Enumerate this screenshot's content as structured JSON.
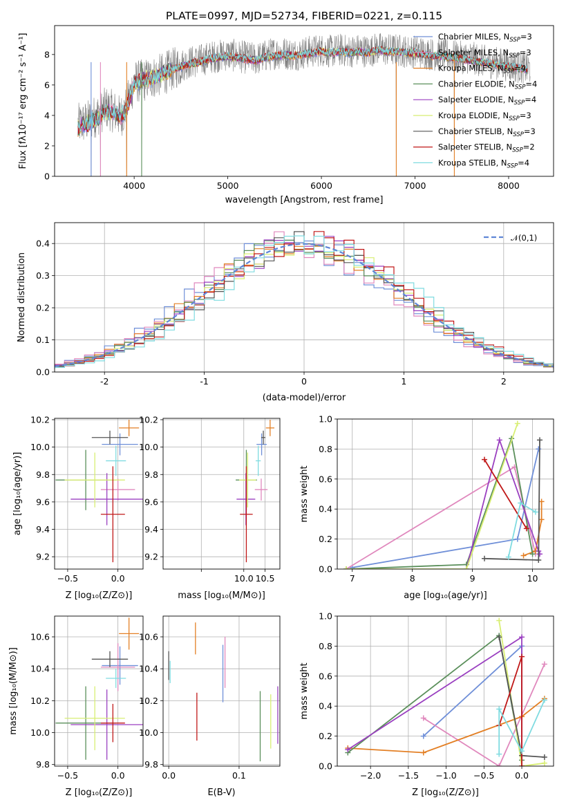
{
  "figure": {
    "title": "PLATE=0997, MJD=52734, FIBERID=0221, z=0.115",
    "colors": {
      "Chabrier MILES": "#6f8fd8",
      "Salpeter MILES": "#e088bd",
      "Kroupa MILES": "#e37f24",
      "Chabrier ELODIE": "#5a8f5a",
      "Salpeter ELODIE": "#9a3fc0",
      "Kroupa ELODIE": "#d8ee72",
      "Chabrier STELIB": "#555555",
      "Salpeter STELIB": "#c01818",
      "Kroupa STELIB": "#7fdbe0"
    }
  },
  "chart_data": [
    {
      "id": "spectrum",
      "type": "line",
      "xlabel": "wavelength [Angstrom, rest frame]",
      "ylabel": "Flux [f_λ 10^-17 erg cm^-2 s^-1 A^-1]",
      "xlim": [
        3150,
        8480
      ],
      "ylim": [
        0,
        9.9
      ],
      "xticks": [
        4000,
        5000,
        6000,
        7000,
        8000
      ],
      "yticks": [
        0,
        2,
        4,
        6,
        8
      ],
      "legend_position": "upper right",
      "legend": [
        {
          "text": "Chabrier MILES, N_SSP=3",
          "label": "Chabrier MILES, N",
          "sub": "SSP",
          "tail": "=3"
        },
        {
          "text": "Salpeter MILES, N_SSP=3",
          "label": "Salpeter MILES, N",
          "sub": "SSP",
          "tail": "=3"
        },
        {
          "text": "Kroupa MILES, N_SSP=4",
          "label": "Kroupa MILES, N",
          "sub": "SSP",
          "tail": "=4"
        },
        {
          "text": "Chabrier ELODIE, N_SSP=4",
          "label": "Chabrier ELODIE, N",
          "sub": "SSP",
          "tail": "=4"
        },
        {
          "text": "Salpeter ELODIE, N_SSP=4",
          "label": "Salpeter ELODIE, N",
          "sub": "SSP",
          "tail": "=4"
        },
        {
          "text": "Kroupa ELODIE, N_SSP=3",
          "label": "Kroupa ELODIE, N",
          "sub": "SSP",
          "tail": "=3"
        },
        {
          "text": "Chabrier STELIB, N_SSP=3",
          "label": "Chabrier STELIB, N",
          "sub": "SSP",
          "tail": "=3"
        },
        {
          "text": "Salpeter STELIB, N_SSP=2",
          "label": "Salpeter STELIB, N",
          "sub": "SSP",
          "tail": "=2"
        },
        {
          "text": "Kroupa STELIB, N_SSP=4",
          "label": "Kroupa STELIB, N",
          "sub": "SSP",
          "tail": "=4"
        }
      ],
      "data_series": {
        "name": "",
        "color": "#808080",
        "x": [
          3400,
          3500,
          3600,
          3700,
          3800,
          3850,
          3900,
          3950,
          4000,
          4100,
          4200,
          4300,
          4400,
          4500,
          4600,
          4700,
          4800,
          4900,
          5000,
          5100,
          5200,
          5300,
          5400,
          5500,
          5600,
          5700,
          5800,
          5900,
          6000,
          6100,
          6200,
          6300,
          6400,
          6500,
          6600,
          6700,
          6800,
          6900,
          7000,
          7100,
          7200,
          7300,
          7400,
          7500,
          7600,
          7700,
          7800,
          7900,
          8000,
          8100,
          8200
        ],
        "y": [
          3.4,
          3.6,
          4.0,
          4.5,
          4.2,
          3.9,
          4.3,
          5.2,
          6.2,
          6.3,
          6.5,
          6.7,
          7.0,
          7.3,
          7.5,
          7.6,
          7.8,
          7.9,
          8.0,
          7.9,
          7.8,
          7.7,
          7.9,
          8.1,
          8.1,
          8.0,
          8.1,
          8.2,
          8.3,
          8.2,
          8.3,
          8.2,
          8.3,
          8.2,
          8.4,
          8.3,
          8.3,
          8.2,
          8.2,
          8.1,
          8.0,
          8.0,
          7.9,
          7.8,
          7.8,
          7.6,
          7.5,
          7.4,
          7.3,
          7.2,
          7.1
        ],
        "noise": 1.1,
        "x_end": 8230
      },
      "model_x": [
        3400,
        3500,
        3600,
        3700,
        3800,
        3850,
        3900,
        3950,
        4000,
        4100,
        4200,
        4300,
        4400,
        4500,
        4600,
        4700,
        4800,
        4900,
        5000,
        5100,
        5200,
        5300,
        5400,
        5500,
        5600,
        5700,
        5800,
        5900,
        6000,
        6100,
        6200,
        6300,
        6400,
        6500,
        6600,
        6700,
        6800,
        6900,
        7000,
        7100,
        7200,
        7300,
        7400,
        7500,
        7600,
        7700,
        7800,
        7900,
        8000,
        8100,
        8200
      ],
      "model_y": [
        3.2,
        3.4,
        3.8,
        4.3,
        4.1,
        3.9,
        4.2,
        5.0,
        6.1,
        6.3,
        6.5,
        6.7,
        7.0,
        7.2,
        7.4,
        7.5,
        7.7,
        7.8,
        7.9,
        7.8,
        7.7,
        7.6,
        7.8,
        7.9,
        8.0,
        7.9,
        8.0,
        8.1,
        8.2,
        8.1,
        8.2,
        8.1,
        8.2,
        8.1,
        8.3,
        8.2,
        8.2,
        8.1,
        8.1,
        8.0,
        7.9,
        7.9,
        7.8,
        7.7,
        7.6,
        7.5,
        7.4,
        7.3,
        7.2,
        7.1,
        7.0
      ],
      "dips": [
        {
          "x": 3540,
          "y": 0
        },
        {
          "x": 3640,
          "y": 0
        },
        {
          "x": 3920,
          "y": 0
        },
        {
          "x": 4080,
          "y": 0
        },
        {
          "x": 6800,
          "y": 0
        },
        {
          "x": 7420,
          "y": 0
        }
      ]
    },
    {
      "id": "residuals",
      "type": "histogram",
      "xlabel": "(data-model)/error",
      "ylabel": "Normed distribution",
      "xlim": [
        -2.5,
        2.5
      ],
      "ylim": [
        0,
        0.465
      ],
      "xticks": [
        -2,
        -1,
        0,
        1,
        2
      ],
      "yticks": [
        0.0,
        0.1,
        0.2,
        0.3,
        0.4
      ],
      "ytick_labels": [
        "0.0",
        "0.1",
        "0.2",
        "0.3",
        "0.4"
      ],
      "grid": true,
      "bin_width": 0.1,
      "legend_position": "upper right",
      "legend": {
        "label": "𝒩(0,1)"
      },
      "reference_curve": {
        "name": "𝒩(0,1)",
        "mean": 0,
        "sigma": 1,
        "color": "#5f86d6",
        "style": "dashed"
      },
      "series_note": "nine step histograms, one per model, approximately Gaussian around 0"
    },
    {
      "id": "age_vs_Z",
      "type": "errorbar",
      "xlabel": "Z [log10(Z/Z⊙)]",
      "ylabel": "age [log10(age/yr)]",
      "xlim": [
        -0.63,
        0.25
      ],
      "ylim": [
        9.11,
        10.21
      ],
      "xticks": [
        -0.5,
        0.0
      ],
      "xtick_labels": [
        "−0.5",
        "0.0"
      ],
      "yticks": [
        9.2,
        9.4,
        9.6,
        9.8,
        10.0,
        10.2
      ],
      "ytick_labels": [
        "9.2",
        "9.4",
        "9.6",
        "9.8",
        "10.0",
        "10.2"
      ],
      "grid": true,
      "points": [
        {
          "model": "Chabrier MILES",
          "x": 0.02,
          "xerr": 0.18,
          "y": 10.02,
          "yerr": 0.08
        },
        {
          "model": "Salpeter MILES",
          "x": 0.0,
          "xerr": 0.17,
          "y": 9.69,
          "yerr": 0.08
        },
        {
          "model": "Kroupa MILES",
          "x": 0.11,
          "xerr": 0.1,
          "y": 10.14,
          "yerr": 0.06
        },
        {
          "model": "Chabrier ELODIE",
          "x": -0.32,
          "xerr": 0.3,
          "y": 9.76,
          "yerr": 0.22
        },
        {
          "model": "Salpeter ELODIE",
          "x": -0.11,
          "xerr": 0.36,
          "y": 9.62,
          "yerr": 0.19
        },
        {
          "model": "Kroupa ELODIE",
          "x": -0.23,
          "xerr": 0.3,
          "y": 9.76,
          "yerr": 0.2
        },
        {
          "model": "Chabrier STELIB",
          "x": -0.08,
          "xerr": 0.18,
          "y": 10.07,
          "yerr": 0.05
        },
        {
          "model": "Salpeter STELIB",
          "x": -0.05,
          "xerr": 0.12,
          "y": 9.51,
          "yerr": 0.35
        },
        {
          "model": "Kroupa STELIB",
          "x": -0.02,
          "xerr": 0.1,
          "y": 9.9,
          "yerr": 0.11
        }
      ]
    },
    {
      "id": "age_vs_mass",
      "type": "errorbar",
      "xlabel": "mass [log10(M/M⊙)]",
      "xlim": [
        8.1,
        10.85
      ],
      "ylim": [
        9.11,
        10.21
      ],
      "xticks": [
        9.0,
        10.0,
        10.5
      ],
      "xtick_labels": [
        "",
        "10.0",
        "10.5"
      ],
      "yticks": [
        9.2,
        9.4,
        9.6,
        9.8,
        10.0,
        10.2
      ],
      "ytick_labels": [
        "9.2",
        "9.4",
        "9.6",
        "9.8",
        "10.0",
        "10.2"
      ],
      "grid": true,
      "points": [
        {
          "model": "Chabrier MILES",
          "x": 10.42,
          "xerr": 0.12,
          "y": 10.02,
          "yerr": 0.08
        },
        {
          "model": "Salpeter MILES",
          "x": 10.41,
          "xerr": 0.15,
          "y": 9.69,
          "yerr": 0.08
        },
        {
          "model": "Kroupa MILES",
          "x": 10.62,
          "xerr": 0.1,
          "y": 10.14,
          "yerr": 0.06
        },
        {
          "model": "Chabrier ELODIE",
          "x": 10.06,
          "xerr": 0.25,
          "y": 9.76,
          "yerr": 0.22
        },
        {
          "model": "Salpeter ELODIE",
          "x": 10.05,
          "xerr": 0.22,
          "y": 9.62,
          "yerr": 0.19
        },
        {
          "model": "Kroupa ELODIE",
          "x": 10.09,
          "xerr": 0.2,
          "y": 9.76,
          "yerr": 0.2
        },
        {
          "model": "Chabrier STELIB",
          "x": 10.46,
          "xerr": 0.05,
          "y": 10.07,
          "yerr": 0.05
        },
        {
          "model": "Salpeter STELIB",
          "x": 10.06,
          "xerr": 0.15,
          "y": 9.51,
          "yerr": 0.35
        },
        {
          "model": "Kroupa STELIB",
          "x": 10.34,
          "xerr": 0.06,
          "y": 9.9,
          "yerr": 0.11
        }
      ]
    },
    {
      "id": "mass_weight_vs_age",
      "type": "line",
      "xlabel": "age [log10(age/yr)]",
      "ylabel": "mass weight",
      "xlim": [
        6.75,
        10.35
      ],
      "ylim": [
        0,
        1.0
      ],
      "xticks": [
        7,
        8,
        9,
        10
      ],
      "yticks": [
        0.0,
        0.2,
        0.4,
        0.6,
        0.8,
        1.0
      ],
      "ytick_labels": [
        "0.0",
        "0.2",
        "0.4",
        "0.6",
        "0.8",
        "1.0"
      ],
      "grid": true,
      "series": [
        {
          "model": "Chabrier MILES",
          "x": [
            7.0,
            9.75,
            10.1
          ],
          "y": [
            0.01,
            0.2,
            0.8
          ]
        },
        {
          "model": "Salpeter MILES",
          "x": [
            6.9,
            9.7,
            10.05
          ],
          "y": [
            0.0,
            0.68,
            0.1
          ]
        },
        {
          "model": "Kroupa MILES",
          "x": [
            9.85,
            10.05,
            10.15,
            10.15
          ],
          "y": [
            0.09,
            0.12,
            0.33,
            0.45
          ]
        },
        {
          "model": "Chabrier ELODIE",
          "x": [
            6.9,
            8.9,
            9.65,
            10.0
          ],
          "y": [
            0.0,
            0.03,
            0.87,
            0.1
          ]
        },
        {
          "model": "Salpeter ELODIE",
          "x": [
            8.9,
            9.45,
            10.1,
            10.12
          ],
          "y": [
            0.0,
            0.86,
            0.12,
            0.1
          ]
        },
        {
          "model": "Kroupa ELODIE",
          "x": [
            6.9,
            8.9,
            9.75
          ],
          "y": [
            0.0,
            0.0,
            0.97
          ]
        },
        {
          "model": "Chabrier STELIB",
          "x": [
            9.2,
            10.1,
            10.12
          ],
          "y": [
            0.07,
            0.06,
            0.86
          ]
        },
        {
          "model": "Salpeter STELIB",
          "x": [
            9.2,
            9.9
          ],
          "y": [
            0.73,
            0.27
          ]
        },
        {
          "model": "Kroupa STELIB",
          "x": [
            9.6,
            9.8,
            10.05
          ],
          "y": [
            0.08,
            0.44,
            0.38
          ]
        }
      ]
    },
    {
      "id": "mass_vs_Z",
      "type": "errorbar",
      "xlabel": "Z [log10(Z/Z⊙)]",
      "ylabel": "mass [log10(M/M⊙)]",
      "xlim": [
        -0.63,
        0.25
      ],
      "ylim": [
        9.79,
        10.73
      ],
      "xticks": [
        -0.5,
        0.0
      ],
      "xtick_labels": [
        "−0.5",
        "0.0"
      ],
      "yticks": [
        9.8,
        10.0,
        10.2,
        10.4,
        10.6
      ],
      "ytick_labels": [
        "9.8",
        "10.0",
        "10.2",
        "10.4",
        "10.6"
      ],
      "grid": true,
      "points": [
        {
          "model": "Chabrier MILES",
          "x": 0.02,
          "xerr": 0.18,
          "y": 10.42,
          "yerr": 0.12
        },
        {
          "model": "Salpeter MILES",
          "x": 0.0,
          "xerr": 0.17,
          "y": 10.41,
          "yerr": 0.15
        },
        {
          "model": "Kroupa MILES",
          "x": 0.11,
          "xerr": 0.1,
          "y": 10.62,
          "yerr": 0.1
        },
        {
          "model": "Chabrier ELODIE",
          "x": -0.32,
          "xerr": 0.3,
          "y": 10.06,
          "yerr": 0.23
        },
        {
          "model": "Salpeter ELODIE",
          "x": -0.11,
          "xerr": 0.36,
          "y": 10.05,
          "yerr": 0.22
        },
        {
          "model": "Kroupa ELODIE",
          "x": -0.23,
          "xerr": 0.3,
          "y": 10.09,
          "yerr": 0.2
        },
        {
          "model": "Chabrier STELIB",
          "x": -0.08,
          "xerr": 0.18,
          "y": 10.46,
          "yerr": 0.05
        },
        {
          "model": "Salpeter STELIB",
          "x": -0.05,
          "xerr": 0.12,
          "y": 10.06,
          "yerr": 0.12
        },
        {
          "model": "Kroupa STELIB",
          "x": -0.02,
          "xerr": 0.1,
          "y": 10.34,
          "yerr": 0.06
        }
      ]
    },
    {
      "id": "mass_vs_EBV",
      "type": "errorbar",
      "xlabel": "E(B-V)",
      "xlim": [
        -0.008,
        0.158
      ],
      "ylim": [
        9.79,
        10.73
      ],
      "xticks": [
        0.0,
        0.1
      ],
      "xtick_labels": [
        "0.0",
        "0.1"
      ],
      "yticks": [
        9.8,
        10.0,
        10.2,
        10.4,
        10.6
      ],
      "ytick_labels": [
        "9.8",
        "10.0",
        "10.2",
        "10.4",
        "10.6"
      ],
      "grid": true,
      "points": [
        {
          "model": "Chabrier MILES",
          "x": 0.077,
          "y": 10.37,
          "yerr": 0.18
        },
        {
          "model": "Salpeter MILES",
          "x": 0.08,
          "y": 10.44,
          "yerr": 0.16
        },
        {
          "model": "Kroupa MILES",
          "x": 0.038,
          "y": 10.59,
          "yerr": 0.1
        },
        {
          "model": "Chabrier ELODIE",
          "x": 0.13,
          "y": 10.04,
          "yerr": 0.22
        },
        {
          "model": "Salpeter ELODIE",
          "x": 0.155,
          "y": 10.11,
          "yerr": 0.18
        },
        {
          "model": "Kroupa ELODIE",
          "x": 0.145,
          "y": 10.07,
          "yerr": 0.17
        },
        {
          "model": "Chabrier STELIB",
          "x": 0.0,
          "y": 10.42,
          "yerr": 0.09
        },
        {
          "model": "Salpeter STELIB",
          "x": 0.04,
          "y": 10.1,
          "yerr": 0.15
        },
        {
          "model": "Kroupa STELIB",
          "x": 0.002,
          "y": 10.38,
          "yerr": 0.07
        }
      ]
    },
    {
      "id": "mass_weight_vs_Z",
      "type": "line",
      "xlabel": "Z [log10(Z/Z⊙)]",
      "ylabel": "mass weight",
      "xlim": [
        -2.44,
        0.42
      ],
      "ylim": [
        0,
        1.0
      ],
      "xticks": [
        -2.0,
        -1.5,
        -1.0,
        -0.5,
        0.0
      ],
      "xtick_labels": [
        "−2.0",
        "−1.5",
        "−1.0",
        "−0.5",
        "0.0"
      ],
      "yticks": [
        0.0,
        0.2,
        0.4,
        0.6,
        0.8,
        1.0
      ],
      "ytick_labels": [
        "0.0",
        "0.2",
        "0.4",
        "0.6",
        "0.8",
        "1.0"
      ],
      "grid": true,
      "series": [
        {
          "model": "Chabrier MILES",
          "x": [
            -1.3,
            0.0,
            0.0
          ],
          "y": [
            0.2,
            0.8,
            0.0
          ]
        },
        {
          "model": "Salpeter MILES",
          "x": [
            -1.3,
            -0.3,
            0.3
          ],
          "y": [
            0.32,
            0.0,
            0.68
          ]
        },
        {
          "model": "Kroupa MILES",
          "x": [
            -2.3,
            -1.3,
            0.0,
            0.3
          ],
          "y": [
            0.12,
            0.09,
            0.33,
            0.45
          ]
        },
        {
          "model": "Chabrier ELODIE",
          "x": [
            -2.3,
            -0.3,
            0.0
          ],
          "y": [
            0.09,
            0.87,
            0.04
          ]
        },
        {
          "model": "Salpeter ELODIE",
          "x": [
            -2.3,
            0.0,
            0.0
          ],
          "y": [
            0.11,
            0.86,
            0.0
          ]
        },
        {
          "model": "Kroupa ELODIE",
          "x": [
            -0.3,
            0.0,
            0.3
          ],
          "y": [
            0.97,
            0.0,
            0.02
          ]
        },
        {
          "model": "Chabrier STELIB",
          "x": [
            -0.3,
            0.0,
            0.3
          ],
          "y": [
            0.86,
            0.07,
            0.06
          ]
        },
        {
          "model": "Salpeter STELIB",
          "x": [
            -0.3,
            0.0,
            0.0
          ],
          "y": [
            0.27,
            0.73,
            0.0
          ]
        },
        {
          "model": "Kroupa STELIB",
          "x": [
            -0.3,
            -0.3,
            0.0,
            0.3
          ],
          "y": [
            0.08,
            0.38,
            0.1,
            0.44
          ]
        }
      ]
    }
  ]
}
